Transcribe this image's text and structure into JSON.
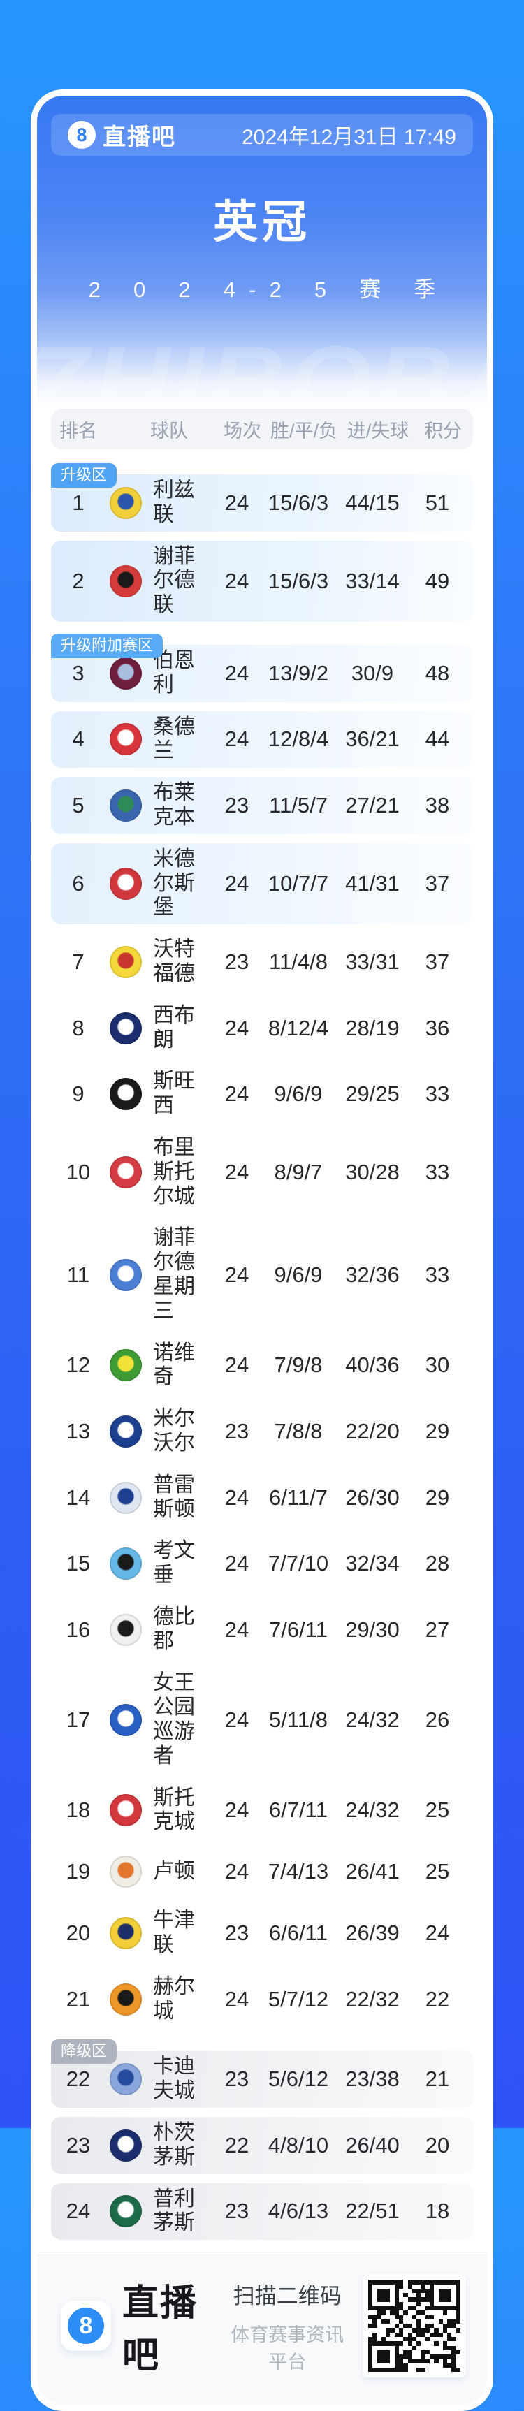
{
  "header": {
    "brand": "直播吧",
    "brand_icon": "8",
    "datetime": "2024年12月31日 17:49",
    "title": "英冠",
    "season": "2024-25赛季",
    "watermark": "ZHIBOBA"
  },
  "colors": {
    "badge_promotion": "#50a5f6",
    "badge_playoff": "#5aabf7",
    "badge_relegation": "#aeb4bf"
  },
  "table": {
    "columns": [
      "排名",
      "球队",
      "场次",
      "胜/平/负",
      "进/失球",
      "积分"
    ],
    "zone_labels": {
      "promotion": "升级区",
      "playoff": "升级附加赛区",
      "relegation": "降级区"
    },
    "rows": [
      {
        "rank": 1,
        "team": "利兹联",
        "played": 24,
        "wdl": "15/6/3",
        "goals": "44/15",
        "points": 51,
        "zone": "promotion",
        "badge": "升级区",
        "logo_colors": [
          "#f2d03a",
          "#2b55a8"
        ]
      },
      {
        "rank": 2,
        "team": "谢菲尔德联",
        "played": 24,
        "wdl": "15/6/3",
        "goals": "33/14",
        "points": 49,
        "zone": "promotion",
        "badge": "",
        "logo_colors": [
          "#d63b3b",
          "#1a1a1a"
        ]
      },
      {
        "rank": 3,
        "team": "伯恩利",
        "played": 24,
        "wdl": "13/9/2",
        "goals": "30/9",
        "points": 48,
        "zone": "playoff",
        "badge": "升级附加赛区",
        "logo_colors": [
          "#70203f",
          "#a8bede"
        ]
      },
      {
        "rank": 4,
        "team": "桑德兰",
        "played": 24,
        "wdl": "12/8/4",
        "goals": "36/21",
        "points": 44,
        "zone": "playoff",
        "badge": "",
        "logo_colors": [
          "#d8343c",
          "#ffffff"
        ]
      },
      {
        "rank": 5,
        "team": "布莱克本",
        "played": 23,
        "wdl": "11/5/7",
        "goals": "27/21",
        "points": 38,
        "zone": "playoff",
        "badge": "",
        "logo_colors": [
          "#3a66b0",
          "#2e8b57"
        ]
      },
      {
        "rank": 6,
        "team": "米德尔斯堡",
        "played": 24,
        "wdl": "10/7/7",
        "goals": "41/31",
        "points": 37,
        "zone": "playoff",
        "badge": "",
        "logo_colors": [
          "#d0383e",
          "#ffffff"
        ]
      },
      {
        "rank": 7,
        "team": "沃特福德",
        "played": 23,
        "wdl": "11/4/8",
        "goals": "33/31",
        "points": 37,
        "zone": "mid",
        "badge": "",
        "logo_colors": [
          "#f3d93a",
          "#c8372d"
        ]
      },
      {
        "rank": 8,
        "team": "西布朗",
        "played": 24,
        "wdl": "8/12/4",
        "goals": "28/19",
        "points": 36,
        "zone": "mid",
        "badge": "",
        "logo_colors": [
          "#1b2f6e",
          "#ffffff"
        ]
      },
      {
        "rank": 9,
        "team": "斯旺西",
        "played": 24,
        "wdl": "9/6/9",
        "goals": "29/25",
        "points": 33,
        "zone": "mid",
        "badge": "",
        "logo_colors": [
          "#1a1a1a",
          "#ffffff"
        ]
      },
      {
        "rank": 10,
        "team": "布里斯托尔城",
        "played": 24,
        "wdl": "8/9/7",
        "goals": "30/28",
        "points": 33,
        "zone": "mid",
        "badge": "",
        "logo_colors": [
          "#d23c42",
          "#ffffff"
        ]
      },
      {
        "rank": 11,
        "team": "谢菲尔德星期三",
        "played": 24,
        "wdl": "9/6/9",
        "goals": "32/36",
        "points": 33,
        "zone": "mid",
        "badge": "",
        "logo_colors": [
          "#4a7fd4",
          "#ffffff"
        ]
      },
      {
        "rank": 12,
        "team": "诺维奇",
        "played": 24,
        "wdl": "7/9/8",
        "goals": "40/36",
        "points": 30,
        "zone": "mid",
        "badge": "",
        "logo_colors": [
          "#3f9c35",
          "#f2e23a"
        ]
      },
      {
        "rank": 13,
        "team": "米尔沃尔",
        "played": 23,
        "wdl": "7/8/8",
        "goals": "22/20",
        "points": 29,
        "zone": "mid",
        "badge": "",
        "logo_colors": [
          "#1c3f8f",
          "#ffffff"
        ]
      },
      {
        "rank": 14,
        "team": "普雷斯顿",
        "played": 24,
        "wdl": "6/11/7",
        "goals": "26/30",
        "points": 29,
        "zone": "mid",
        "badge": "",
        "logo_colors": [
          "#dfe7f2",
          "#1c3f8f"
        ]
      },
      {
        "rank": 15,
        "team": "考文垂",
        "played": 24,
        "wdl": "7/7/10",
        "goals": "32/34",
        "points": 28,
        "zone": "mid",
        "badge": "",
        "logo_colors": [
          "#66b8e8",
          "#1a1a1a"
        ]
      },
      {
        "rank": 16,
        "team": "德比郡",
        "played": 24,
        "wdl": "7/6/11",
        "goals": "29/30",
        "points": 27,
        "zone": "mid",
        "badge": "",
        "logo_colors": [
          "#f0f0f0",
          "#1a1a1a"
        ]
      },
      {
        "rank": 17,
        "team": "女王公园巡游者",
        "played": 24,
        "wdl": "5/11/8",
        "goals": "24/32",
        "points": 26,
        "zone": "mid",
        "badge": "",
        "logo_colors": [
          "#2a5fc4",
          "#ffffff"
        ]
      },
      {
        "rank": 18,
        "team": "斯托克城",
        "played": 24,
        "wdl": "6/7/11",
        "goals": "24/32",
        "points": 25,
        "zone": "mid",
        "badge": "",
        "logo_colors": [
          "#d2383e",
          "#ffffff"
        ]
      },
      {
        "rank": 19,
        "team": "卢顿",
        "played": 24,
        "wdl": "7/4/13",
        "goals": "26/41",
        "points": 25,
        "zone": "mid",
        "badge": "",
        "logo_colors": [
          "#f0ede4",
          "#e2762e"
        ]
      },
      {
        "rank": 20,
        "team": "牛津联",
        "played": 23,
        "wdl": "6/6/11",
        "goals": "26/39",
        "points": 24,
        "zone": "mid",
        "badge": "",
        "logo_colors": [
          "#f2cf3a",
          "#1c2f6b"
        ]
      },
      {
        "rank": 21,
        "team": "赫尔城",
        "played": 24,
        "wdl": "5/7/12",
        "goals": "22/32",
        "points": 22,
        "zone": "mid",
        "badge": "",
        "logo_colors": [
          "#ef962a",
          "#1a1a1a"
        ]
      },
      {
        "rank": 22,
        "team": "卡迪夫城",
        "played": 23,
        "wdl": "5/6/12",
        "goals": "23/38",
        "points": 21,
        "zone": "relegation",
        "badge": "降级区",
        "logo_colors": [
          "#8aa6dc",
          "#274b9e"
        ]
      },
      {
        "rank": 23,
        "team": "朴茨茅斯",
        "played": 22,
        "wdl": "4/8/10",
        "goals": "26/40",
        "points": 20,
        "zone": "relegation",
        "badge": "",
        "logo_colors": [
          "#1b2f6e",
          "#ffffff"
        ]
      },
      {
        "rank": 24,
        "team": "普利茅斯",
        "played": 23,
        "wdl": "4/6/13",
        "goals": "22/51",
        "points": 18,
        "zone": "relegation",
        "badge": "",
        "logo_colors": [
          "#1e6b4a",
          "#ffffff"
        ]
      }
    ]
  },
  "footer": {
    "brand": "直播吧",
    "brand_icon": "8",
    "scan_label": "扫描二维码",
    "platform_label": "体育赛事资讯平台"
  }
}
